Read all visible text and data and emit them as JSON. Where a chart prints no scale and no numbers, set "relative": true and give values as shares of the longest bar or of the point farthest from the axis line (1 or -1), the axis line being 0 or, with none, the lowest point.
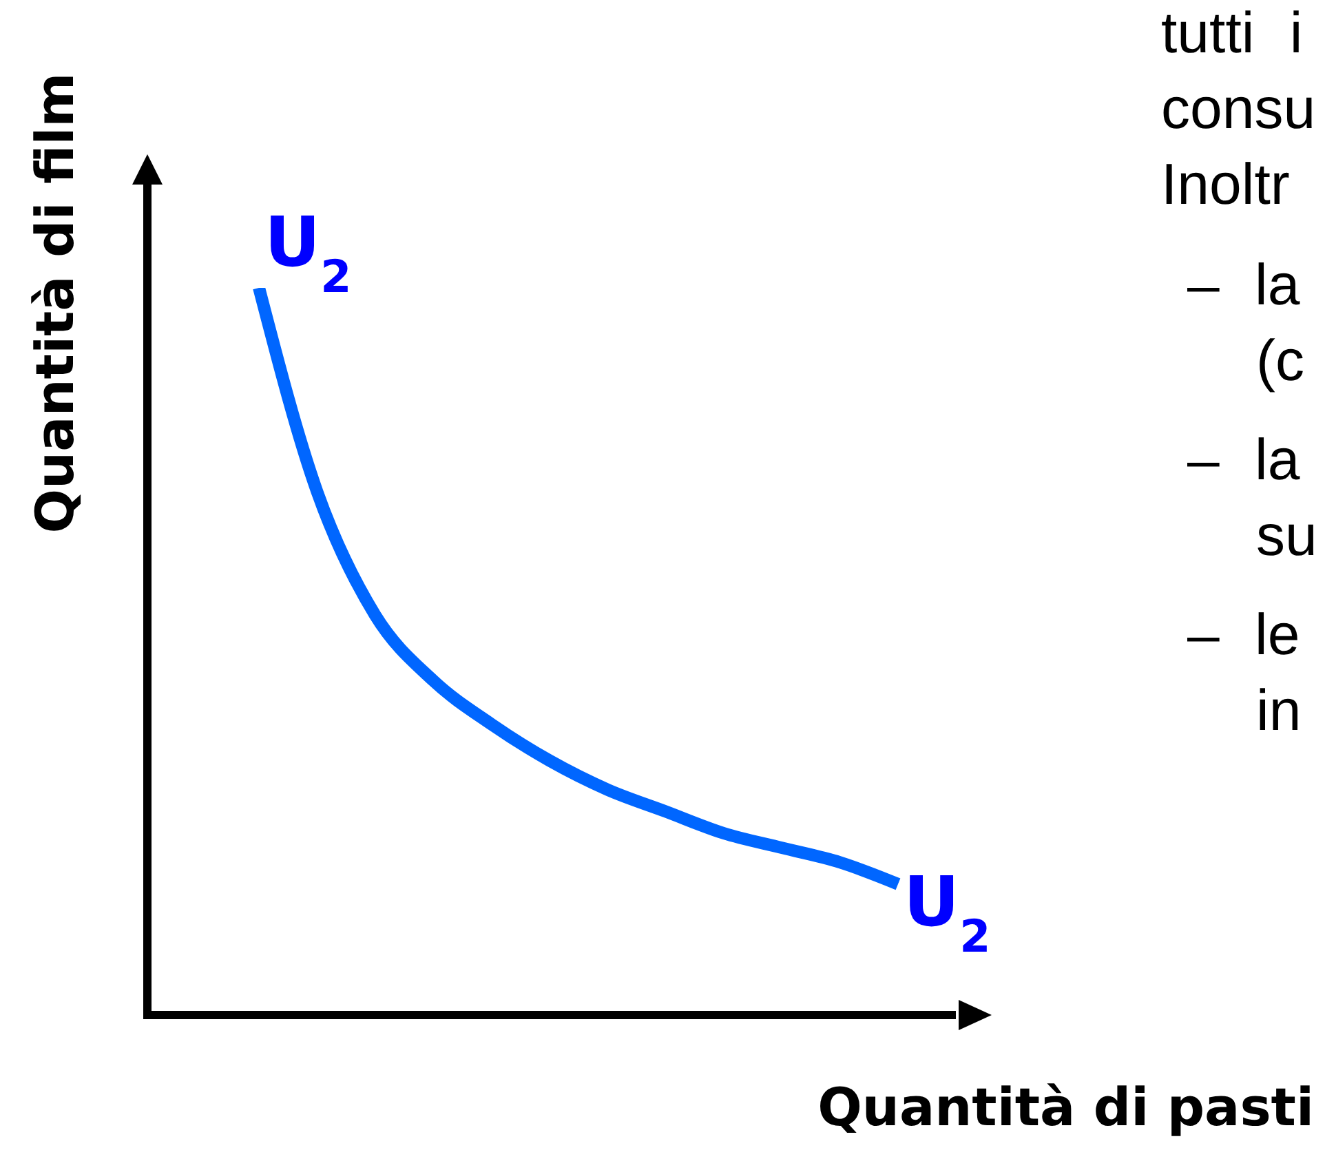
{
  "chart_data": {
    "type": "line",
    "relative": true,
    "xlabel": "Quantità di pasti",
    "ylabel": "Quantità di film",
    "categories": [
      null,
      null,
      null,
      null,
      null,
      null,
      null,
      null,
      null,
      null,
      null,
      null
    ],
    "series": [
      {
        "name": "U$_{2}$",
        "color": "#0066ff",
        "values": [
          1,
          0.72,
          0.55,
          0.46,
          0.4,
          0.35,
          0.31,
          0.28,
          0.25,
          0.23,
          0.21,
          0.18
        ]
      }
    ],
    "marker": "none",
    "line_style": "solid",
    "annotations": [
      "tutti i",
      "consu",
      "Inoltr",
      "– la",
      "(c",
      "– la",
      "su",
      "– le",
      "in"
    ]
  }
}
